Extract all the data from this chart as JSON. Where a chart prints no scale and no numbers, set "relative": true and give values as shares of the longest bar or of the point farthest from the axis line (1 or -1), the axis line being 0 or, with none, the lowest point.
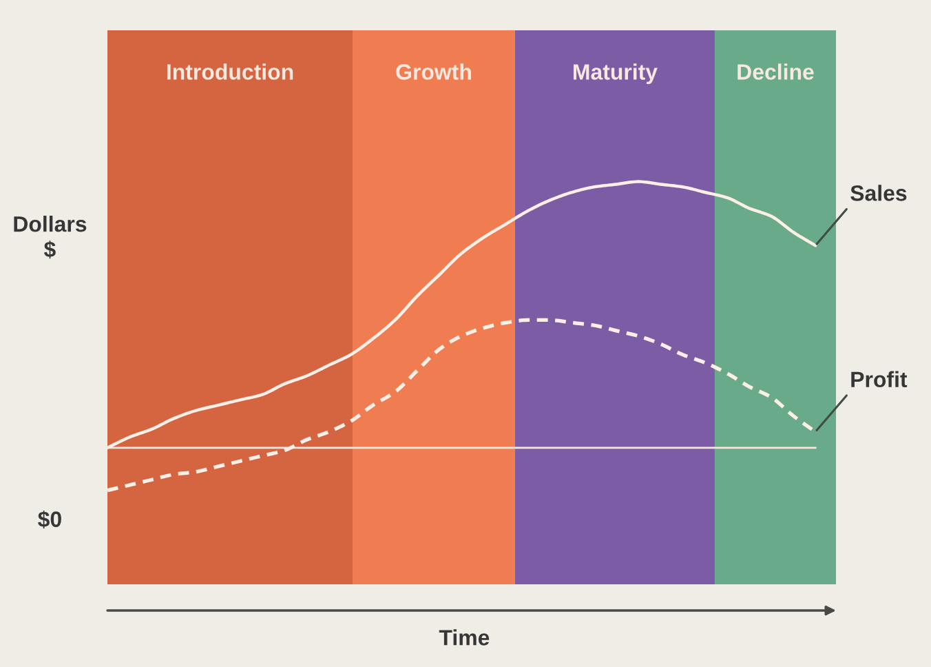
{
  "chart_data": {
    "type": "line",
    "relative": true,
    "ylabel": "Dollars\n$",
    "annotations": [
      "Introduction",
      "Growth",
      "Maturity",
      "Decline",
      "$0",
      "Time"
    ],
    "marker": "none",
    "categories": [
      null,
      null,
      null,
      null,
      null,
      null,
      null,
      null,
      null,
      null,
      null,
      null,
      null,
      null,
      null,
      null,
      null,
      null,
      null,
      null,
      null,
      null,
      null,
      null,
      null,
      null,
      null,
      null,
      null,
      null,
      null,
      null,
      null
    ],
    "series": [
      {
        "name": "Sales",
        "color": "#fcefe8",
        "line_style": "solid",
        "values": [
          0,
          0.04,
          0.07,
          0.11,
          0.14,
          0.16,
          0.18,
          0.2,
          0.24,
          0.27,
          0.31,
          0.35,
          0.41,
          0.48,
          0.57,
          0.65,
          0.73,
          0.79,
          0.84,
          0.89,
          0.93,
          0.96,
          0.98,
          0.99,
          1,
          0.99,
          0.98,
          0.96,
          0.94,
          0.9,
          0.87,
          0.81,
          0.76
        ]
      },
      {
        "name": "Profit",
        "color": "#fcefe8",
        "line_style": "dashed",
        "values": [
          -0.16,
          -0.14,
          -0.12,
          -0.1,
          -0.09,
          -0.07,
          -0.05,
          -0.03,
          -0.01,
          0.03,
          0.06,
          0.1,
          0.16,
          0.21,
          0.29,
          0.37,
          0.42,
          0.45,
          0.47,
          0.48,
          0.48,
          0.47,
          0.46,
          0.44,
          0.42,
          0.39,
          0.35,
          0.32,
          0.28,
          0.23,
          0.19,
          0.12,
          0.06
        ]
      }
    ],
    "ref_lines": [
      {
        "axis": "y",
        "value": 0,
        "color": "#f6e6de"
      }
    ]
  }
}
